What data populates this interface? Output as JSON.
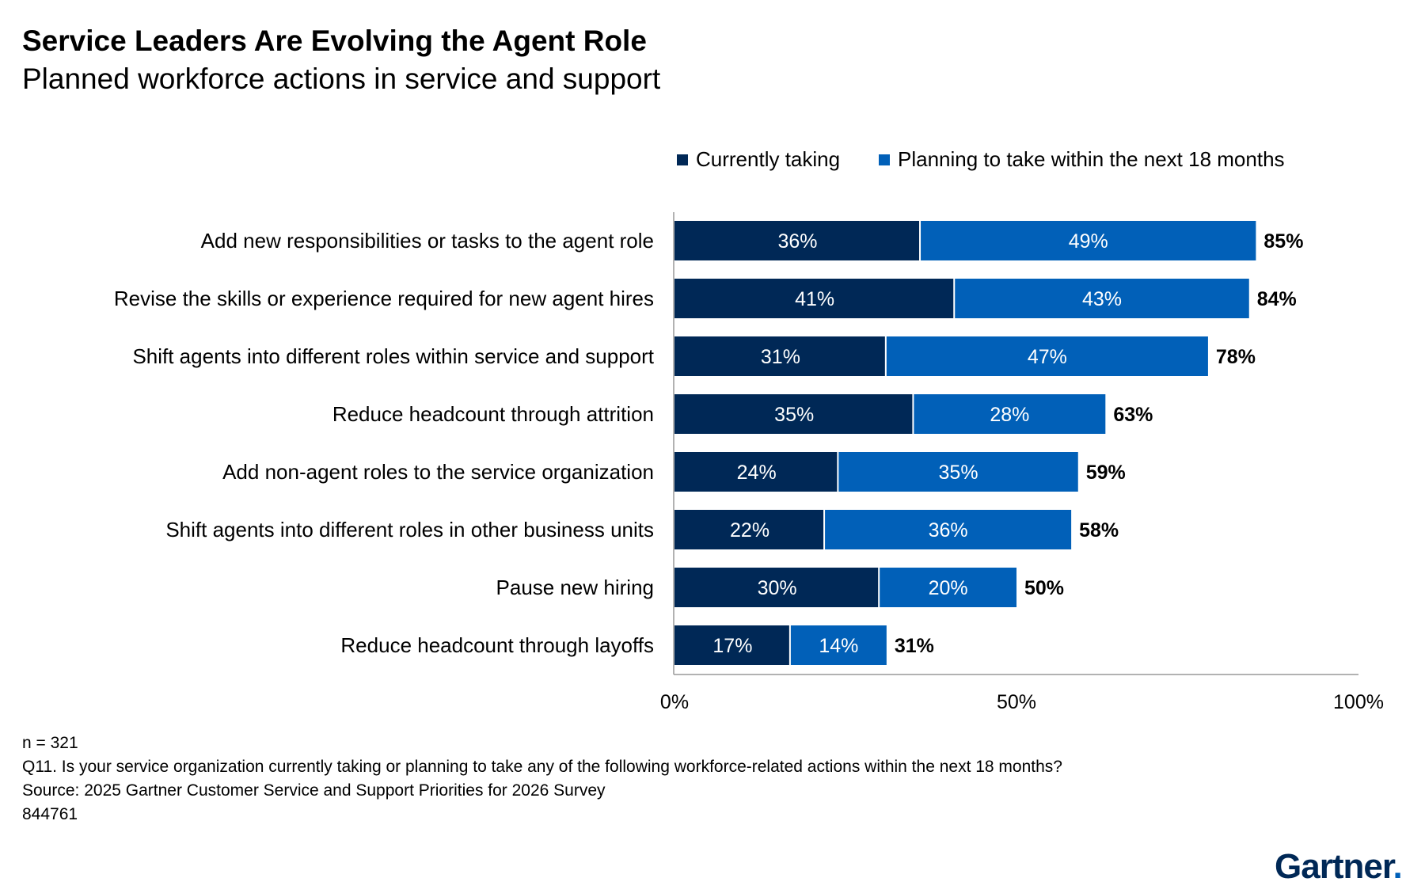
{
  "title": "Service Leaders Are Evolving the Agent Role",
  "subtitle": "Planned workforce actions in service and support",
  "colors": {
    "currently": "#002856",
    "planning": "#0160b8",
    "axis": "#999999"
  },
  "chart_data": {
    "type": "bar",
    "orientation": "horizontal",
    "stacked": true,
    "legend_position": "top-right",
    "grid": false,
    "categories": [
      "Add new responsibilities or tasks to the agent role",
      "Revise the skills or experience required for new agent hires",
      "Shift agents into different roles within service and support",
      "Reduce headcount through attrition",
      "Add non-agent roles to the service organization",
      "Shift agents into different roles in other business units",
      "Pause new hiring",
      "Reduce headcount through layoffs"
    ],
    "series": [
      {
        "name": "Currently taking",
        "values": [
          36,
          41,
          31,
          35,
          24,
          22,
          30,
          17
        ]
      },
      {
        "name": "Planning to take within the next 18 months",
        "values": [
          49,
          43,
          47,
          28,
          35,
          36,
          20,
          14
        ]
      }
    ],
    "totals": [
      85,
      84,
      78,
      63,
      59,
      58,
      50,
      31
    ],
    "xlim": [
      0,
      100
    ],
    "x_ticks": [
      0,
      50,
      100
    ],
    "x_tick_labels": [
      "0%",
      "50%",
      "100%"
    ]
  },
  "notes": [
    "n = 321",
    "Q11. Is your service organization currently taking or planning to take any of the following workforce-related actions within the next 18 months?",
    "Source: 2025 Gartner Customer Service and Support Priorities for 2026 Survey",
    "844761"
  ],
  "logo_text": "Gartner",
  "logo_mark": "."
}
